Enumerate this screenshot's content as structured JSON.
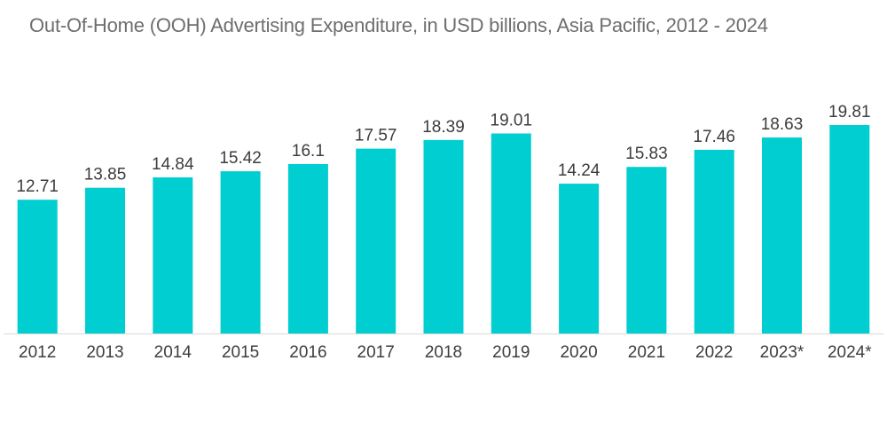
{
  "title": "Out-Of-Home (OOH) Advertising Expenditure, in USD billions, Asia Pacific, 2012 - 2024",
  "colors": {
    "bar": "#00ced1",
    "text": "#3d3d3d",
    "title": "#6e6e6e",
    "axis": "#d9d9d9"
  },
  "chart_data": {
    "type": "bar",
    "title": "Out-Of-Home (OOH) Advertising Expenditure, in USD billions, Asia Pacific, 2012 - 2024",
    "xlabel": "",
    "ylabel": "",
    "categories": [
      "2012",
      "2013",
      "2014",
      "2015",
      "2016",
      "2017",
      "2018",
      "2019",
      "2020",
      "2021",
      "2022",
      "2023*",
      "2024*"
    ],
    "values": [
      12.71,
      13.85,
      14.84,
      15.42,
      16.1,
      17.57,
      18.39,
      19.01,
      14.24,
      15.83,
      17.46,
      18.63,
      19.81
    ],
    "value_labels": [
      "12.71",
      "13.85",
      "14.84",
      "15.42",
      "16.1",
      "17.57",
      "18.39",
      "19.01",
      "14.24",
      "15.83",
      "17.46",
      "18.63",
      "19.81"
    ],
    "ylim": [
      0,
      19.81
    ],
    "grid": false,
    "legend": "none"
  }
}
